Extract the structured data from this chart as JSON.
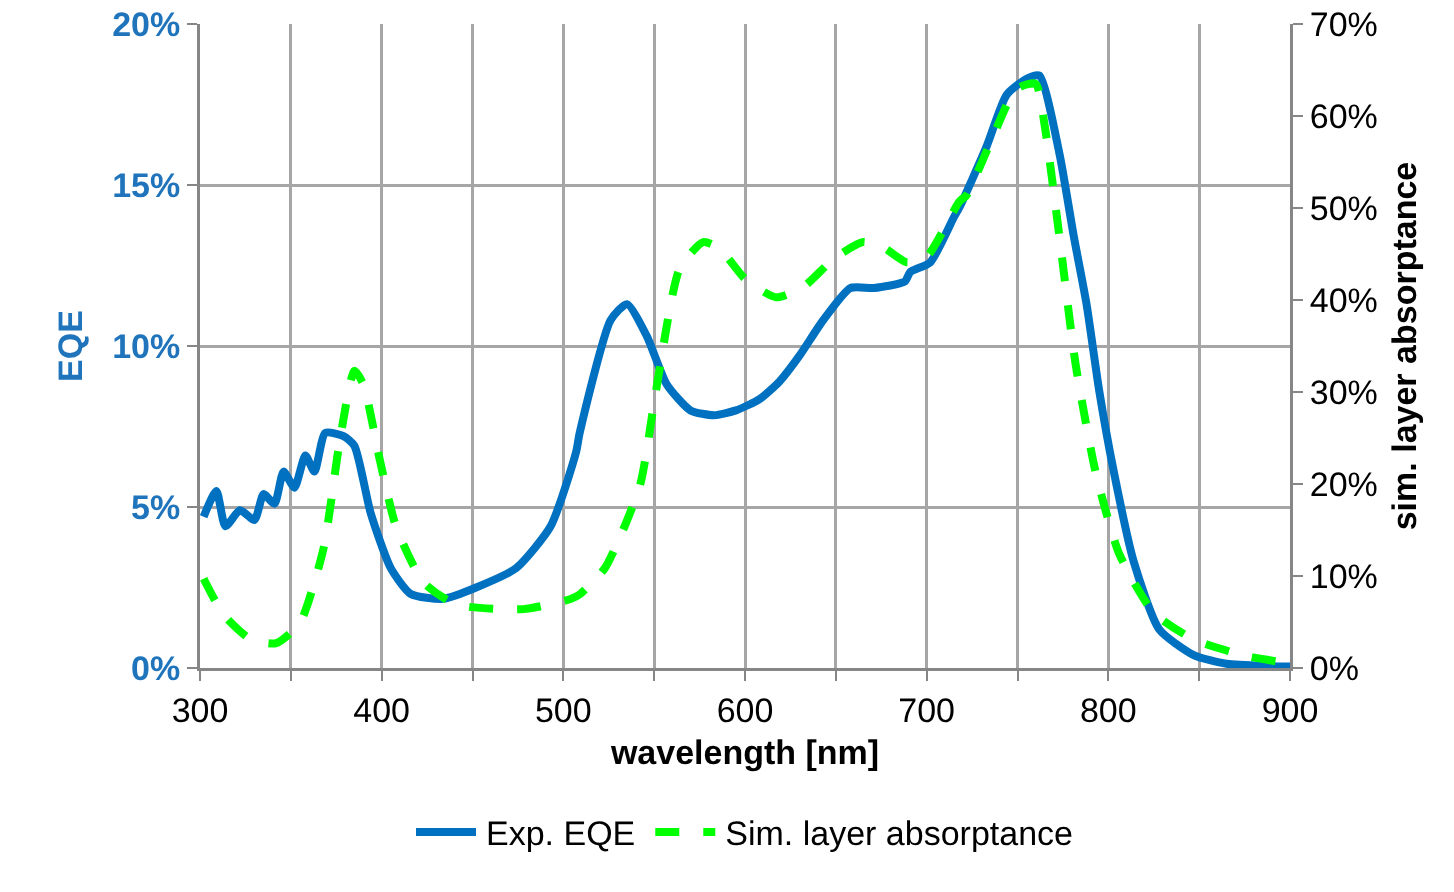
{
  "chart_data": {
    "type": "line",
    "xlabel": "wavelength [nm]",
    "ylabel": "EQE",
    "y2label": "sim. layer absorptance",
    "xlim": [
      300,
      900
    ],
    "xticks": [
      300,
      {
        "value": 350,
        "label": null
      },
      400,
      {
        "value": 450,
        "label": null
      },
      500,
      {
        "value": 550,
        "label": null
      },
      600,
      {
        "value": 650,
        "label": null
      },
      700,
      {
        "value": 750,
        "label": null
      },
      800,
      {
        "value": 850,
        "label": null
      },
      900
    ],
    "ylim": [
      0,
      20
    ],
    "yticks": [
      {
        "value": 0,
        "label": "0%"
      },
      {
        "value": 5,
        "label": "5%"
      },
      {
        "value": 10,
        "label": "10%"
      },
      {
        "value": 15,
        "label": "15%"
      },
      {
        "value": 20,
        "label": "20%"
      }
    ],
    "y2lim": [
      0,
      70
    ],
    "y2ticks": [
      {
        "value": 0,
        "label": "0%"
      },
      {
        "value": 10,
        "label": "10%"
      },
      {
        "value": 20,
        "label": "20%"
      },
      {
        "value": 30,
        "label": "30%"
      },
      {
        "value": 40,
        "label": "40%"
      },
      {
        "value": 50,
        "label": "50%"
      },
      {
        "value": 60,
        "label": "60%"
      },
      {
        "value": 70,
        "label": "70%"
      }
    ],
    "grid": true,
    "legend": "bottom",
    "marker": "none",
    "series": [
      {
        "name": "Exp. EQE",
        "color": "#0070c0",
        "line_style": "solid",
        "x": [
          302,
          309,
          314,
          322,
          330,
          335,
          341,
          346,
          352,
          358,
          363,
          369,
          379,
          385,
          394,
          405,
          416,
          434,
          452,
          474,
          493,
          507,
          509,
          526,
          535,
          546,
          557,
          570,
          583,
          595,
          608,
          619,
          630,
          643,
          658,
          671,
          688,
          691,
          702,
          715,
          718,
          733,
          744,
          755,
          762,
          773,
          781,
          788,
          795,
          803,
          814,
          828,
          847,
          865,
          887,
          900
        ],
        "values": [
          4.7,
          5.5,
          4.4,
          4.9,
          4.6,
          5.4,
          5.1,
          6.1,
          5.6,
          6.6,
          6.1,
          7.3,
          7.2,
          6.9,
          4.8,
          3.1,
          2.3,
          2.15,
          2.5,
          3.1,
          4.4,
          6.7,
          7.3,
          10.8,
          11.3,
          10.3,
          8.8,
          8.0,
          7.85,
          8.0,
          8.35,
          8.9,
          9.7,
          10.8,
          11.8,
          11.8,
          12.0,
          12.3,
          12.6,
          14.0,
          14.3,
          16.2,
          17.8,
          18.3,
          18.4,
          16.0,
          13.4,
          11.3,
          8.6,
          6.1,
          3.3,
          1.2,
          0.4,
          0.13,
          0.06,
          0.05
        ]
      },
      {
        "name": "Sim. layer absorptance",
        "color": "#00ff00",
        "line_style": "dashed",
        "axis": "y2",
        "x": [
          302,
          313,
          328,
          342,
          355,
          368,
          377,
          385,
          390,
          399,
          408,
          423,
          441,
          478,
          504,
          509,
          523,
          542,
          551,
          564,
          577,
          586,
          600,
          617,
          632,
          649,
          665,
          677,
          689,
          700,
          718,
          722,
          737,
          749,
          760,
          765,
          773,
          782,
          793,
          806,
          825,
          847,
          876,
          900
        ],
        "values": [
          9.7,
          5.8,
          3.1,
          2.7,
          4.9,
          13,
          24.8,
          32.3,
          30.8,
          22.6,
          15.3,
          9.3,
          6.9,
          6.4,
          7.5,
          8.0,
          10.9,
          19.7,
          30.1,
          43.4,
          46.3,
          45.6,
          42.3,
          40.3,
          41.4,
          44.5,
          46.3,
          45.6,
          44.1,
          44.7,
          50.7,
          51.4,
          58,
          62.9,
          63.5,
          58.9,
          47,
          33,
          21.3,
          12.4,
          6,
          3.1,
          1.3,
          0.5
        ]
      }
    ]
  }
}
